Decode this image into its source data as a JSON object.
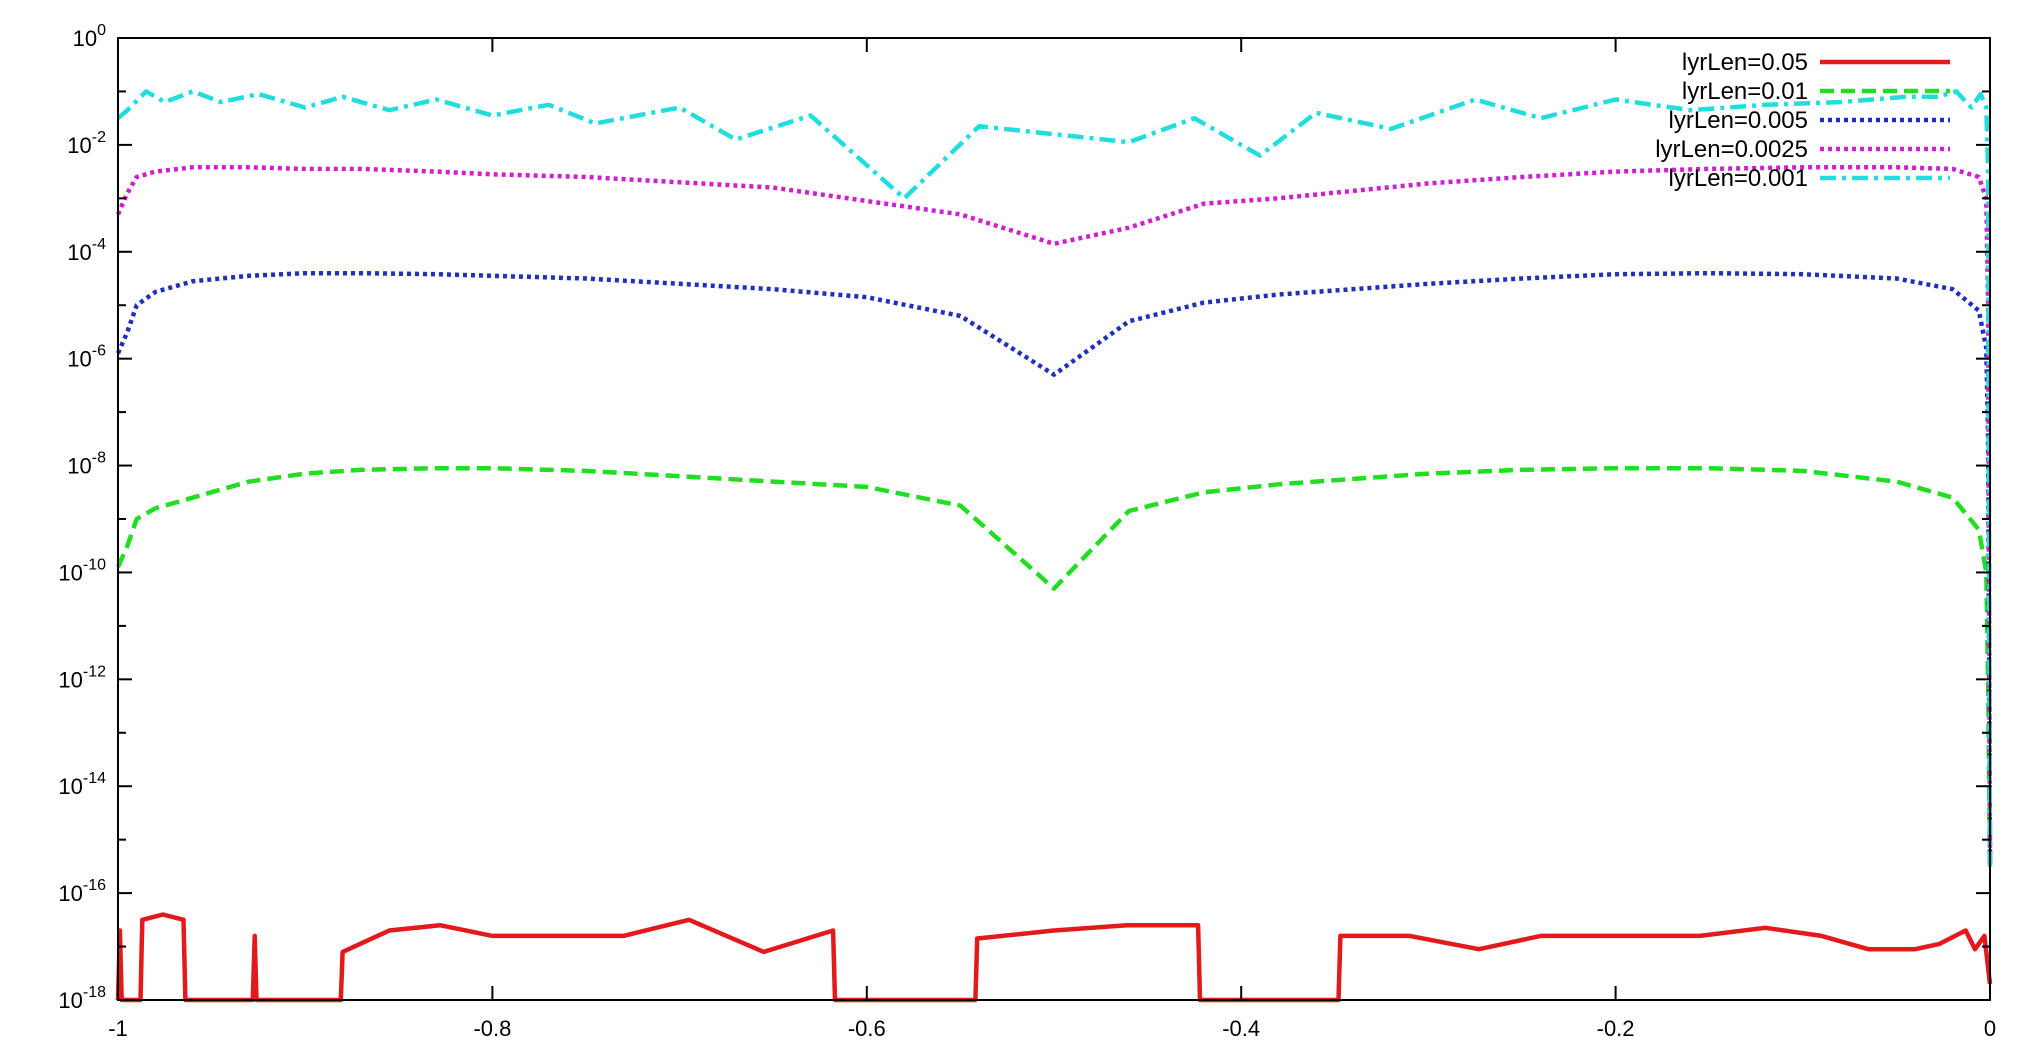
{
  "chart_data": {
    "type": "line",
    "title": "",
    "xlabel": "",
    "ylabel": "",
    "xlim": [
      -1,
      0
    ],
    "ylim": [
      1e-18,
      1
    ],
    "yscale": "log",
    "grid": false,
    "legend_position": "top-right",
    "x_ticks": [
      {
        "value": -1,
        "label": "-1"
      },
      {
        "value": -0.8,
        "label": "-0.8"
      },
      {
        "value": -0.6,
        "label": "-0.6"
      },
      {
        "value": -0.4,
        "label": "-0.4"
      },
      {
        "value": -0.2,
        "label": "-0.2"
      },
      {
        "value": 0,
        "label": "0"
      }
    ],
    "y_ticks": [
      {
        "exp": 0,
        "base": "10",
        "sup": "0"
      },
      {
        "exp": -2,
        "base": "10",
        "sup": "-2"
      },
      {
        "exp": -4,
        "base": "10",
        "sup": "-4"
      },
      {
        "exp": -6,
        "base": "10",
        "sup": "-6"
      },
      {
        "exp": -8,
        "base": "10",
        "sup": "-8"
      },
      {
        "exp": -10,
        "base": "10",
        "sup": "-10"
      },
      {
        "exp": -12,
        "base": "10",
        "sup": "-12"
      },
      {
        "exp": -14,
        "base": "10",
        "sup": "-14"
      },
      {
        "exp": -16,
        "base": "10",
        "sup": "-16"
      },
      {
        "exp": -18,
        "base": "10",
        "sup": "-18"
      }
    ],
    "series": [
      {
        "name": "lyrLen=0.05",
        "color": "#e31a1c",
        "style": "solid",
        "points": [
          [
            -1.0,
            -18
          ],
          [
            -0.999,
            -16.7
          ],
          [
            -0.998,
            -18
          ],
          [
            -0.988,
            -18
          ],
          [
            -0.987,
            -16.5
          ],
          [
            -0.976,
            -16.4
          ],
          [
            -0.965,
            -16.5
          ],
          [
            -0.964,
            -18
          ],
          [
            -0.928,
            -18
          ],
          [
            -0.927,
            -16.8
          ],
          [
            -0.926,
            -18
          ],
          [
            -0.881,
            -18
          ],
          [
            -0.88,
            -17.1
          ],
          [
            -0.855,
            -16.7
          ],
          [
            -0.828,
            -16.6
          ],
          [
            -0.8,
            -16.8
          ],
          [
            -0.765,
            -16.8
          ],
          [
            -0.73,
            -16.8
          ],
          [
            -0.695,
            -16.5
          ],
          [
            -0.655,
            -17.1
          ],
          [
            -0.618,
            -16.7
          ],
          [
            -0.617,
            -18
          ],
          [
            -0.542,
            -18
          ],
          [
            -0.541,
            -16.85
          ],
          [
            -0.5,
            -16.7
          ],
          [
            -0.461,
            -16.6
          ],
          [
            -0.423,
            -16.6
          ],
          [
            -0.422,
            -18
          ],
          [
            -0.348,
            -18
          ],
          [
            -0.347,
            -16.8
          ],
          [
            -0.31,
            -16.8
          ],
          [
            -0.273,
            -17.05
          ],
          [
            -0.24,
            -16.8
          ],
          [
            -0.2,
            -16.8
          ],
          [
            -0.155,
            -16.8
          ],
          [
            -0.12,
            -16.65
          ],
          [
            -0.09,
            -16.8
          ],
          [
            -0.065,
            -17.05
          ],
          [
            -0.04,
            -17.05
          ],
          [
            -0.027,
            -16.95
          ],
          [
            -0.013,
            -16.7
          ],
          [
            -0.008,
            -17.05
          ],
          [
            -0.003,
            -16.8
          ],
          [
            0.0,
            -17.7
          ]
        ]
      },
      {
        "name": "lyrLen=0.01",
        "color": "#22dd22",
        "style": "dashed",
        "points": [
          [
            -1.0,
            -9.9
          ],
          [
            -0.995,
            -9.5
          ],
          [
            -0.99,
            -9.0
          ],
          [
            -0.98,
            -8.8
          ],
          [
            -0.96,
            -8.6
          ],
          [
            -0.93,
            -8.3
          ],
          [
            -0.9,
            -8.15
          ],
          [
            -0.87,
            -8.08
          ],
          [
            -0.83,
            -8.05
          ],
          [
            -0.8,
            -8.05
          ],
          [
            -0.75,
            -8.1
          ],
          [
            -0.7,
            -8.2
          ],
          [
            -0.65,
            -8.3
          ],
          [
            -0.6,
            -8.4
          ],
          [
            -0.55,
            -8.75
          ],
          [
            -0.5,
            -10.3
          ],
          [
            -0.46,
            -8.85
          ],
          [
            -0.42,
            -8.5
          ],
          [
            -0.38,
            -8.35
          ],
          [
            -0.3,
            -8.15
          ],
          [
            -0.25,
            -8.08
          ],
          [
            -0.2,
            -8.05
          ],
          [
            -0.15,
            -8.05
          ],
          [
            -0.1,
            -8.1
          ],
          [
            -0.05,
            -8.3
          ],
          [
            -0.02,
            -8.6
          ],
          [
            -0.006,
            -9.2
          ],
          [
            -0.002,
            -10.0
          ],
          [
            -0.001,
            -12.0
          ],
          [
            0.0,
            -15.5
          ]
        ]
      },
      {
        "name": "lyrLen=0.005",
        "color": "#1f2fbf",
        "style": "dotted",
        "points": [
          [
            -1.0,
            -5.9
          ],
          [
            -0.995,
            -5.5
          ],
          [
            -0.99,
            -5.0
          ],
          [
            -0.98,
            -4.75
          ],
          [
            -0.96,
            -4.55
          ],
          [
            -0.93,
            -4.45
          ],
          [
            -0.9,
            -4.4
          ],
          [
            -0.87,
            -4.4
          ],
          [
            -0.83,
            -4.42
          ],
          [
            -0.8,
            -4.45
          ],
          [
            -0.75,
            -4.5
          ],
          [
            -0.7,
            -4.6
          ],
          [
            -0.65,
            -4.7
          ],
          [
            -0.6,
            -4.85
          ],
          [
            -0.55,
            -5.2
          ],
          [
            -0.5,
            -6.3
          ],
          [
            -0.46,
            -5.3
          ],
          [
            -0.42,
            -4.95
          ],
          [
            -0.38,
            -4.8
          ],
          [
            -0.3,
            -4.6
          ],
          [
            -0.25,
            -4.5
          ],
          [
            -0.2,
            -4.42
          ],
          [
            -0.15,
            -4.4
          ],
          [
            -0.1,
            -4.42
          ],
          [
            -0.05,
            -4.5
          ],
          [
            -0.02,
            -4.7
          ],
          [
            -0.006,
            -5.1
          ],
          [
            -0.002,
            -5.8
          ],
          [
            -0.001,
            -7.5
          ],
          [
            0.0,
            -15.5
          ]
        ]
      },
      {
        "name": "lyrLen=0.0025",
        "color": "#d01fd0",
        "style": "dotted",
        "points": [
          [
            -1.0,
            -3.3
          ],
          [
            -0.995,
            -2.9
          ],
          [
            -0.99,
            -2.6
          ],
          [
            -0.98,
            -2.5
          ],
          [
            -0.96,
            -2.42
          ],
          [
            -0.93,
            -2.42
          ],
          [
            -0.9,
            -2.45
          ],
          [
            -0.87,
            -2.45
          ],
          [
            -0.83,
            -2.5
          ],
          [
            -0.8,
            -2.55
          ],
          [
            -0.75,
            -2.6
          ],
          [
            -0.7,
            -2.7
          ],
          [
            -0.65,
            -2.8
          ],
          [
            -0.6,
            -3.05
          ],
          [
            -0.55,
            -3.3
          ],
          [
            -0.5,
            -3.85
          ],
          [
            -0.46,
            -3.55
          ],
          [
            -0.42,
            -3.1
          ],
          [
            -0.38,
            -3.0
          ],
          [
            -0.3,
            -2.72
          ],
          [
            -0.25,
            -2.6
          ],
          [
            -0.2,
            -2.5
          ],
          [
            -0.15,
            -2.45
          ],
          [
            -0.1,
            -2.42
          ],
          [
            -0.05,
            -2.42
          ],
          [
            -0.02,
            -2.45
          ],
          [
            -0.006,
            -2.6
          ],
          [
            -0.002,
            -3.0
          ],
          [
            -0.001,
            -5.0
          ],
          [
            0.0,
            -15.5
          ]
        ]
      },
      {
        "name": "lyrLen=0.001",
        "color": "#22dddd",
        "style": "dashdot",
        "points": [
          [
            -1.0,
            -1.5
          ],
          [
            -0.995,
            -1.35
          ],
          [
            -0.985,
            -1.0
          ],
          [
            -0.975,
            -1.2
          ],
          [
            -0.96,
            -1.0
          ],
          [
            -0.945,
            -1.2
          ],
          [
            -0.925,
            -1.05
          ],
          [
            -0.9,
            -1.3
          ],
          [
            -0.88,
            -1.1
          ],
          [
            -0.855,
            -1.35
          ],
          [
            -0.83,
            -1.15
          ],
          [
            -0.8,
            -1.45
          ],
          [
            -0.77,
            -1.25
          ],
          [
            -0.745,
            -1.6
          ],
          [
            -0.7,
            -1.3
          ],
          [
            -0.67,
            -1.9
          ],
          [
            -0.63,
            -1.45
          ],
          [
            -0.58,
            -3.0
          ],
          [
            -0.54,
            -1.65
          ],
          [
            -0.5,
            -1.8
          ],
          [
            -0.46,
            -1.95
          ],
          [
            -0.425,
            -1.5
          ],
          [
            -0.39,
            -2.2
          ],
          [
            -0.36,
            -1.4
          ],
          [
            -0.32,
            -1.7
          ],
          [
            -0.275,
            -1.15
          ],
          [
            -0.24,
            -1.5
          ],
          [
            -0.2,
            -1.15
          ],
          [
            -0.16,
            -1.35
          ],
          [
            -0.12,
            -1.25
          ],
          [
            -0.08,
            -1.2
          ],
          [
            -0.045,
            -1.1
          ],
          [
            -0.028,
            -1.1
          ],
          [
            -0.018,
            -1.0
          ],
          [
            -0.01,
            -1.3
          ],
          [
            -0.005,
            -1.05
          ],
          [
            -0.002,
            -1.3
          ],
          [
            -0.001,
            -2.5
          ],
          [
            0.0,
            -15.5
          ]
        ]
      }
    ]
  }
}
